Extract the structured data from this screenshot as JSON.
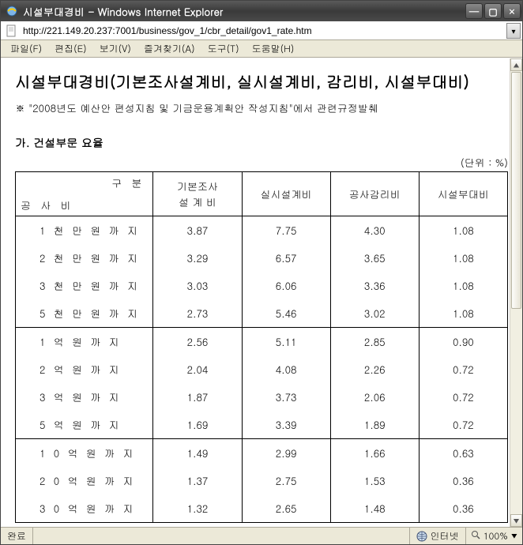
{
  "window": {
    "title": "시설부대경비 - Windows Internet Explorer",
    "url": "http://221.149.20.237:7001/business/gov_1/cbr_detail/gov1_rate.htm"
  },
  "menus": {
    "file": "파일(F)",
    "edit": "편집(E)",
    "view": "보기(V)",
    "favorites": "즐겨찾기(A)",
    "tools": "도구(T)",
    "help": "도움말(H)"
  },
  "page": {
    "title": "시설부대경비(기본조사설계비, 실시설계비, 감리비, 시설부대비)",
    "note": "※ \"2008년도 예산안 편성지침 및 기금운용계획안 작성지침\"에서 관련규정발췌",
    "section": "가. 건설부문 요율",
    "unit": "(단위 : %)"
  },
  "table": {
    "header": {
      "rowcol_top": "구 분",
      "rowcol_bottom": "공 사 비",
      "cols": [
        "기본조사\n설 계 비",
        "실시설계비",
        "공사감리비",
        "시설부대비"
      ]
    },
    "groups": [
      {
        "rows": [
          {
            "label": "1천만원까지",
            "v": [
              "3.87",
              "7.75",
              "4.30",
              "1.08"
            ]
          },
          {
            "label": "2천만원까지",
            "v": [
              "3.29",
              "6.57",
              "3.65",
              "1.08"
            ]
          },
          {
            "label": "3천만원까지",
            "v": [
              "3.03",
              "6.06",
              "3.36",
              "1.08"
            ]
          },
          {
            "label": "5천만원까지",
            "v": [
              "2.73",
              "5.46",
              "3.02",
              "1.08"
            ]
          }
        ]
      },
      {
        "rows": [
          {
            "label": "1억원까지",
            "v": [
              "2.56",
              "5.11",
              "2.85",
              "0.90"
            ]
          },
          {
            "label": "2억원까지",
            "v": [
              "2.04",
              "4.08",
              "2.26",
              "0.72"
            ]
          },
          {
            "label": "3억원까지",
            "v": [
              "1.87",
              "3.73",
              "2.06",
              "0.72"
            ]
          },
          {
            "label": "5억원까지",
            "v": [
              "1.69",
              "3.39",
              "1.89",
              "0.72"
            ]
          }
        ]
      },
      {
        "rows": [
          {
            "label": "10억원까지",
            "v": [
              "1.49",
              "2.99",
              "1.66",
              "0.63"
            ]
          },
          {
            "label": "20억원까지",
            "v": [
              "1.37",
              "2.75",
              "1.53",
              "0.36"
            ]
          },
          {
            "label": "30억원까지",
            "v": [
              "1.32",
              "2.65",
              "1.48",
              "0.36"
            ]
          }
        ]
      }
    ]
  },
  "status": {
    "done": "완료",
    "zone": "인터넷",
    "zoom": "100%"
  },
  "style": {
    "table_border_color": "#000000",
    "page_background": "#ffffff",
    "chrome_background": "#ece9d8",
    "col_widths_pct": [
      28,
      18,
      18,
      18,
      18
    ]
  }
}
